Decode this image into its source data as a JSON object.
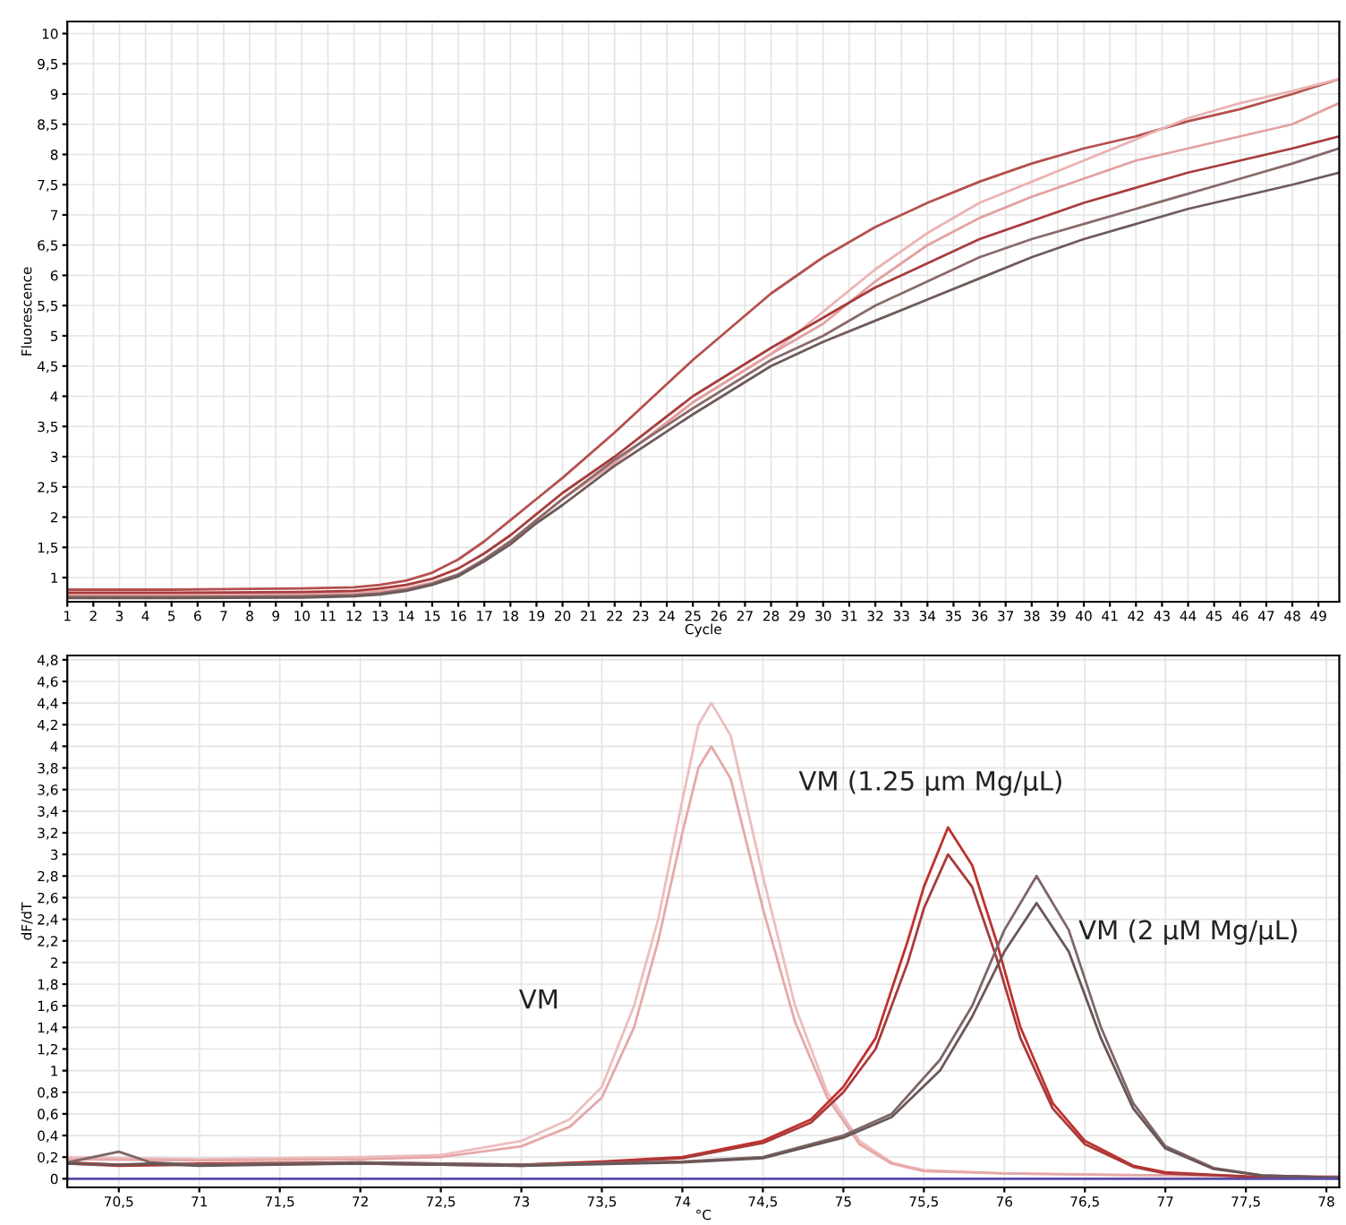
{
  "chart_data": [
    {
      "type": "line",
      "xlabel": "Cycle",
      "ylabel": "Fluorescence",
      "grid": true,
      "line_style": "solid",
      "marker": "none",
      "xlim": [
        1,
        49.8
      ],
      "ylim": [
        0.6,
        10.2
      ],
      "xticks": [
        1,
        2,
        3,
        4,
        5,
        6,
        7,
        8,
        9,
        10,
        11,
        12,
        13,
        14,
        15,
        16,
        17,
        18,
        19,
        20,
        21,
        22,
        23,
        24,
        25,
        26,
        27,
        28,
        29,
        30,
        31,
        32,
        33,
        34,
        35,
        36,
        37,
        38,
        39,
        40,
        41,
        42,
        43,
        44,
        45,
        46,
        47,
        48,
        49
      ],
      "yticks": [
        1,
        {
          "value": 1.5,
          "label": "1,5"
        },
        2,
        {
          "value": 2.5,
          "label": "2,5"
        },
        3,
        {
          "value": 3.5,
          "label": "3,5"
        },
        4,
        {
          "value": 4.5,
          "label": "4,5"
        },
        5,
        {
          "value": 5.5,
          "label": "5,5"
        },
        6,
        {
          "value": 6.5,
          "label": "6,5"
        },
        7,
        {
          "value": 7.5,
          "label": "7,5"
        },
        8,
        {
          "value": 8.5,
          "label": "8,5"
        },
        9,
        {
          "value": 9.5,
          "label": "9,5"
        },
        10
      ],
      "x": [
        1,
        5,
        10,
        12,
        13,
        14,
        15,
        16,
        17,
        18,
        19,
        20,
        22,
        25,
        28,
        30,
        32,
        34,
        36,
        38,
        40,
        42,
        44,
        46,
        48,
        49.8
      ],
      "series": [
        {
          "color": "#b4504e",
          "values": [
            0.8,
            0.8,
            0.82,
            0.84,
            0.88,
            0.95,
            1.08,
            1.3,
            1.6,
            1.95,
            2.3,
            2.65,
            3.4,
            4.6,
            5.7,
            6.3,
            6.8,
            7.2,
            7.55,
            7.85,
            8.1,
            8.3,
            8.55,
            8.75,
            9.0,
            9.25
          ]
        },
        {
          "color": "#ebb3b3",
          "values": [
            0.72,
            0.72,
            0.73,
            0.75,
            0.78,
            0.83,
            0.92,
            1.05,
            1.3,
            1.6,
            1.95,
            2.3,
            2.9,
            3.9,
            4.7,
            5.4,
            6.1,
            6.7,
            7.2,
            7.55,
            7.9,
            8.25,
            8.6,
            8.85,
            9.05,
            9.25
          ]
        },
        {
          "color": "#e3a0a0",
          "values": [
            0.7,
            0.7,
            0.71,
            0.73,
            0.76,
            0.81,
            0.9,
            1.05,
            1.3,
            1.6,
            1.95,
            2.3,
            2.9,
            3.9,
            4.7,
            5.2,
            5.9,
            6.5,
            6.95,
            7.3,
            7.6,
            7.9,
            8.1,
            8.3,
            8.5,
            8.85
          ]
        },
        {
          "color": "#a83c3c",
          "values": [
            0.75,
            0.75,
            0.76,
            0.78,
            0.82,
            0.88,
            0.98,
            1.15,
            1.4,
            1.7,
            2.05,
            2.4,
            3.0,
            4.0,
            4.8,
            5.3,
            5.8,
            6.2,
            6.6,
            6.9,
            7.2,
            7.45,
            7.7,
            7.9,
            8.1,
            8.3
          ]
        },
        {
          "color": "#8a6a6a",
          "values": [
            0.68,
            0.68,
            0.69,
            0.71,
            0.74,
            0.8,
            0.9,
            1.05,
            1.3,
            1.6,
            1.95,
            2.3,
            2.95,
            3.8,
            4.6,
            5.0,
            5.5,
            5.9,
            6.3,
            6.6,
            6.85,
            7.1,
            7.35,
            7.6,
            7.85,
            8.1
          ]
        },
        {
          "color": "#6f5a5a",
          "values": [
            0.66,
            0.66,
            0.67,
            0.69,
            0.72,
            0.78,
            0.88,
            1.02,
            1.27,
            1.55,
            1.9,
            2.2,
            2.85,
            3.7,
            4.5,
            4.9,
            5.25,
            5.6,
            5.95,
            6.3,
            6.6,
            6.85,
            7.1,
            7.3,
            7.5,
            7.7
          ]
        }
      ]
    },
    {
      "type": "line",
      "xlabel": "°C",
      "ylabel": "dF/dT",
      "grid": true,
      "line_style": "solid",
      "marker": "none",
      "xlim": [
        70.18,
        78.08
      ],
      "ylim": [
        -0.08,
        4.84
      ],
      "xticks": [
        {
          "value": 70.5,
          "label": "70,5"
        },
        71,
        {
          "value": 71.5,
          "label": "71,5"
        },
        72,
        {
          "value": 72.5,
          "label": "72,5"
        },
        73,
        {
          "value": 73.5,
          "label": "73,5"
        },
        74,
        {
          "value": 74.5,
          "label": "74,5"
        },
        75,
        {
          "value": 75.5,
          "label": "75,5"
        },
        76,
        {
          "value": 76.5,
          "label": "76,5"
        },
        77,
        {
          "value": 77.5,
          "label": "77,5"
        },
        78
      ],
      "yticks": [
        0,
        {
          "value": 0.2,
          "label": "0,2"
        },
        {
          "value": 0.4,
          "label": "0,4"
        },
        {
          "value": 0.6,
          "label": "0,6"
        },
        {
          "value": 0.8,
          "label": "0,8"
        },
        1,
        {
          "value": 1.2,
          "label": "1,2"
        },
        {
          "value": 1.4,
          "label": "1,4"
        },
        {
          "value": 1.6,
          "label": "1,6"
        },
        {
          "value": 1.8,
          "label": "1,8"
        },
        2,
        {
          "value": 2.2,
          "label": "2,2"
        },
        {
          "value": 2.4,
          "label": "2,4"
        },
        {
          "value": 2.6,
          "label": "2,6"
        },
        {
          "value": 2.8,
          "label": "2,8"
        },
        3,
        {
          "value": 3.2,
          "label": "3,2"
        },
        {
          "value": 3.4,
          "label": "3,4"
        },
        {
          "value": 3.6,
          "label": "3,6"
        },
        {
          "value": 3.8,
          "label": "3,8"
        },
        4,
        {
          "value": 4.2,
          "label": "4,2"
        },
        {
          "value": 4.4,
          "label": "4,4"
        },
        {
          "value": 4.6,
          "label": "4,6"
        },
        {
          "value": 4.8,
          "label": "4,8"
        }
      ],
      "series": [
        {
          "color": "#edbdbd",
          "x": [
            70.18,
            71,
            72,
            72.5,
            73,
            73.3,
            73.5,
            73.7,
            73.85,
            74,
            74.1,
            74.18,
            74.3,
            74.5,
            74.7,
            74.9,
            75.1,
            75.3,
            75.5,
            76,
            77,
            78.08
          ],
          "values": [
            0.2,
            0.18,
            0.2,
            0.22,
            0.35,
            0.55,
            0.85,
            1.6,
            2.4,
            3.5,
            4.2,
            4.4,
            4.1,
            2.8,
            1.6,
            0.8,
            0.35,
            0.15,
            0.08,
            0.05,
            0.03,
            0.02
          ]
        },
        {
          "color": "#e6a8a8",
          "x": [
            70.18,
            71,
            72,
            72.5,
            73,
            73.3,
            73.5,
            73.7,
            73.85,
            74,
            74.1,
            74.18,
            74.3,
            74.5,
            74.7,
            74.9,
            75.1,
            75.3,
            75.5,
            76,
            77,
            78.08
          ],
          "values": [
            0.18,
            0.17,
            0.18,
            0.2,
            0.3,
            0.48,
            0.75,
            1.4,
            2.2,
            3.2,
            3.8,
            4.0,
            3.7,
            2.5,
            1.45,
            0.75,
            0.32,
            0.14,
            0.07,
            0.05,
            0.03,
            0.02
          ]
        },
        {
          "color": "#c0302c",
          "x": [
            70.18,
            70.5,
            71,
            72,
            73,
            73.5,
            74,
            74.5,
            74.8,
            75,
            75.2,
            75.4,
            75.5,
            75.65,
            75.8,
            75.95,
            76.1,
            76.3,
            76.5,
            76.8,
            77,
            77.5,
            78.08
          ],
          "values": [
            0.15,
            0.13,
            0.14,
            0.15,
            0.13,
            0.16,
            0.2,
            0.35,
            0.55,
            0.85,
            1.3,
            2.2,
            2.7,
            3.25,
            2.9,
            2.2,
            1.4,
            0.7,
            0.35,
            0.12,
            0.06,
            0.02,
            0.01
          ]
        },
        {
          "color": "#a83a3a",
          "x": [
            70.18,
            70.5,
            71,
            72,
            73,
            73.5,
            74,
            74.5,
            74.8,
            75,
            75.2,
            75.4,
            75.5,
            75.65,
            75.8,
            75.95,
            76.1,
            76.3,
            76.5,
            76.8,
            77,
            77.5,
            78.08
          ],
          "values": [
            0.14,
            0.12,
            0.13,
            0.14,
            0.12,
            0.15,
            0.19,
            0.33,
            0.52,
            0.8,
            1.2,
            2.0,
            2.5,
            3.0,
            2.7,
            2.05,
            1.3,
            0.65,
            0.32,
            0.11,
            0.05,
            0.02,
            0.01
          ]
        },
        {
          "color": "#7e6666",
          "x": [
            70.18,
            70.5,
            70.7,
            71,
            72,
            73,
            74,
            74.5,
            75,
            75.3,
            75.6,
            75.8,
            76,
            76.2,
            76.4,
            76.6,
            76.8,
            77,
            77.3,
            77.6,
            78.08
          ],
          "values": [
            0.15,
            0.25,
            0.15,
            0.13,
            0.15,
            0.13,
            0.16,
            0.2,
            0.4,
            0.6,
            1.1,
            1.6,
            2.3,
            2.8,
            2.3,
            1.4,
            0.7,
            0.3,
            0.1,
            0.03,
            0.01
          ]
        },
        {
          "color": "#6a5656",
          "x": [
            70.18,
            70.5,
            70.7,
            71,
            72,
            73,
            74,
            74.5,
            75,
            75.3,
            75.6,
            75.8,
            76,
            76.2,
            76.4,
            76.6,
            76.8,
            77,
            77.3,
            77.6,
            78.08
          ],
          "values": [
            0.14,
            0.13,
            0.14,
            0.12,
            0.14,
            0.12,
            0.15,
            0.19,
            0.38,
            0.57,
            1.0,
            1.5,
            2.1,
            2.55,
            2.1,
            1.3,
            0.65,
            0.28,
            0.09,
            0.03,
            0.01
          ]
        }
      ],
      "ref_lines": [
        {
          "axis": "y",
          "value": 0,
          "color": "#5a4aa8"
        }
      ],
      "annotations": [
        "VM",
        "VM (1.25 µm Mg/µL)",
        "VM (2 µM Mg/µL)"
      ]
    }
  ]
}
